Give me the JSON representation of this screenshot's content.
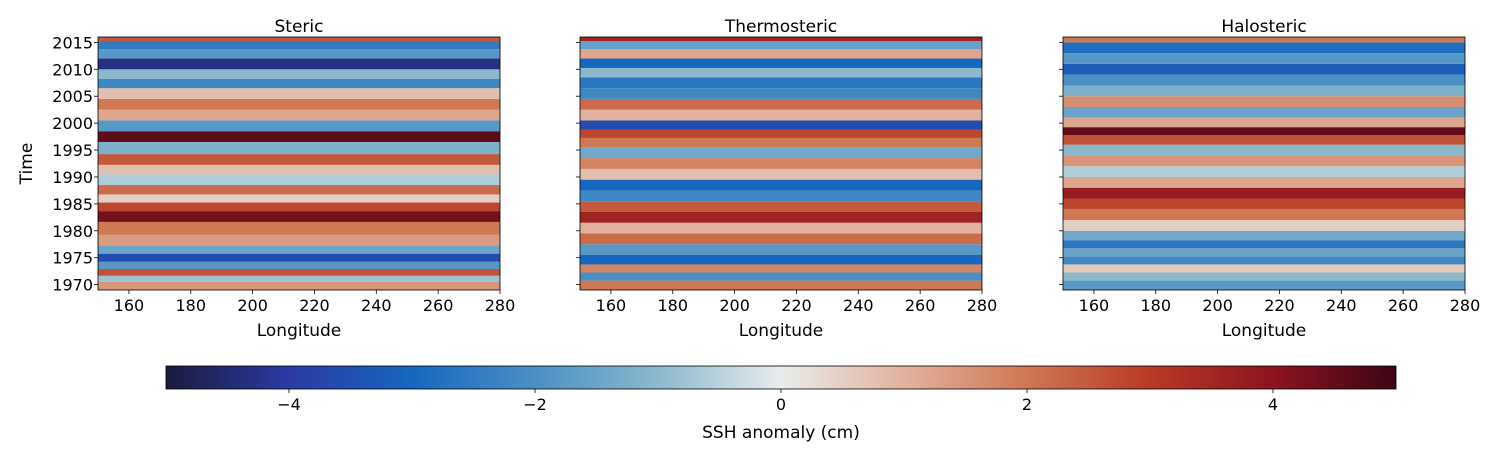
{
  "chart_data": {
    "type": "heatmap",
    "panels": [
      {
        "title": "Steric",
        "xlabel": "Longitude",
        "ylabel": "Time",
        "xlim": [
          150,
          280
        ],
        "ylim": [
          1969,
          2016
        ],
        "xticks": [
          160,
          180,
          200,
          220,
          240,
          260,
          280
        ],
        "yticks": [
          1970,
          1975,
          1980,
          1985,
          1990,
          1995,
          2000,
          2005,
          2010,
          2015
        ],
        "show_ytick_labels": true,
        "bands": [
          {
            "t": 1970.0,
            "v": 1.5
          },
          {
            "t": 1971.0,
            "v": -0.8
          },
          {
            "t": 1972.3,
            "v": 2.6
          },
          {
            "t": 1973.5,
            "v": -1.8
          },
          {
            "t": 1975.0,
            "v": -3.6
          },
          {
            "t": 1976.5,
            "v": -1.5
          },
          {
            "t": 1978.0,
            "v": 1.4
          },
          {
            "t": 1980.5,
            "v": 2.0
          },
          {
            "t": 1982.8,
            "v": 4.3
          },
          {
            "t": 1984.5,
            "v": 2.8
          },
          {
            "t": 1986.0,
            "v": 0.5
          },
          {
            "t": 1987.5,
            "v": 2.2
          },
          {
            "t": 1989.5,
            "v": -0.6
          },
          {
            "t": 1991.5,
            "v": 0.8
          },
          {
            "t": 1993.0,
            "v": 2.5
          },
          {
            "t": 1995.5,
            "v": -1.2
          },
          {
            "t": 1997.5,
            "v": 4.6
          },
          {
            "t": 1999.5,
            "v": -1.8
          },
          {
            "t": 2001.5,
            "v": 1.2
          },
          {
            "t": 2003.5,
            "v": 2.0
          },
          {
            "t": 2005.5,
            "v": 0.8
          },
          {
            "t": 2007.5,
            "v": -2.2
          },
          {
            "t": 2009.0,
            "v": -1.0
          },
          {
            "t": 2011.0,
            "v": -4.3
          },
          {
            "t": 2013.0,
            "v": -1.8
          },
          {
            "t": 2014.5,
            "v": -2.5
          },
          {
            "t": 2016.0,
            "v": 2.5
          }
        ]
      },
      {
        "title": "Thermosteric",
        "xlabel": "Longitude",
        "ylabel": "",
        "xlim": [
          150,
          280
        ],
        "ylim": [
          1969,
          2016
        ],
        "xticks": [
          160,
          180,
          200,
          220,
          240,
          260,
          280
        ],
        "yticks": [
          1970,
          1975,
          1980,
          1985,
          1990,
          1995,
          2000,
          2005,
          2010,
          2015
        ],
        "show_ytick_labels": false,
        "bands": [
          {
            "t": 1970.0,
            "v": 2.0
          },
          {
            "t": 1971.5,
            "v": -2.0
          },
          {
            "t": 1973.0,
            "v": 1.8
          },
          {
            "t": 1974.5,
            "v": -3.0
          },
          {
            "t": 1976.5,
            "v": -1.8
          },
          {
            "t": 1978.5,
            "v": 2.2
          },
          {
            "t": 1980.5,
            "v": 1.0
          },
          {
            "t": 1982.5,
            "v": 3.6
          },
          {
            "t": 1984.5,
            "v": 2.5
          },
          {
            "t": 1986.5,
            "v": -2.2
          },
          {
            "t": 1988.5,
            "v": -3.0
          },
          {
            "t": 1990.5,
            "v": 0.8
          },
          {
            "t": 1992.5,
            "v": 1.8
          },
          {
            "t": 1994.5,
            "v": -1.4
          },
          {
            "t": 1996.5,
            "v": 2.0
          },
          {
            "t": 1998.0,
            "v": 2.8
          },
          {
            "t": 1999.5,
            "v": -3.6
          },
          {
            "t": 2001.5,
            "v": 1.0
          },
          {
            "t": 2003.5,
            "v": 2.2
          },
          {
            "t": 2005.5,
            "v": -2.2
          },
          {
            "t": 2007.5,
            "v": -2.6
          },
          {
            "t": 2009.5,
            "v": -1.0
          },
          {
            "t": 2011.0,
            "v": -3.0
          },
          {
            "t": 2013.0,
            "v": 1.2
          },
          {
            "t": 2014.5,
            "v": -1.6
          },
          {
            "t": 2016.0,
            "v": 3.6
          }
        ]
      },
      {
        "title": "Halosteric",
        "xlabel": "Longitude",
        "ylabel": "",
        "xlim": [
          150,
          280
        ],
        "ylim": [
          1969,
          2016
        ],
        "xticks": [
          160,
          180,
          200,
          220,
          240,
          260,
          280
        ],
        "yticks": [
          1970,
          1975,
          1980,
          1985,
          1990,
          1995,
          2000,
          2005,
          2010,
          2015
        ],
        "show_ytick_labels": false,
        "bands": [
          {
            "t": 1970.0,
            "v": -1.8
          },
          {
            "t": 1971.5,
            "v": -1.0
          },
          {
            "t": 1973.0,
            "v": 0.6
          },
          {
            "t": 1974.5,
            "v": -2.2
          },
          {
            "t": 1976.0,
            "v": -1.5
          },
          {
            "t": 1977.5,
            "v": -2.6
          },
          {
            "t": 1979.0,
            "v": -1.4
          },
          {
            "t": 1981.0,
            "v": 0.5
          },
          {
            "t": 1983.0,
            "v": 2.0
          },
          {
            "t": 1985.0,
            "v": 2.8
          },
          {
            "t": 1987.0,
            "v": 3.8
          },
          {
            "t": 1989.0,
            "v": 1.2
          },
          {
            "t": 1991.0,
            "v": -0.6
          },
          {
            "t": 1993.0,
            "v": 1.5
          },
          {
            "t": 1995.0,
            "v": -1.0
          },
          {
            "t": 1997.0,
            "v": 2.6
          },
          {
            "t": 1998.5,
            "v": 4.5
          },
          {
            "t": 2000.0,
            "v": 1.2
          },
          {
            "t": 2002.0,
            "v": -1.5
          },
          {
            "t": 2004.0,
            "v": 1.6
          },
          {
            "t": 2006.0,
            "v": -1.2
          },
          {
            "t": 2008.0,
            "v": -2.0
          },
          {
            "t": 2010.0,
            "v": -3.2
          },
          {
            "t": 2012.0,
            "v": -1.8
          },
          {
            "t": 2014.0,
            "v": -2.8
          },
          {
            "t": 2016.0,
            "v": 2.0
          }
        ]
      }
    ],
    "colorbar": {
      "label": "SSH anomaly (cm)",
      "range": [
        -5,
        5
      ],
      "ticks": [
        -4,
        -2,
        0,
        2,
        4
      ],
      "tick_labels": [
        "−4",
        "−2",
        "0",
        "2",
        "4"
      ],
      "colormap": [
        "#1b1b3d",
        "#2a3aa3",
        "#1766bf",
        "#4a90c4",
        "#8cb8cc",
        "#e8ecec",
        "#e2b29e",
        "#cf7854",
        "#b83a26",
        "#8c1420",
        "#3c0514"
      ]
    }
  }
}
